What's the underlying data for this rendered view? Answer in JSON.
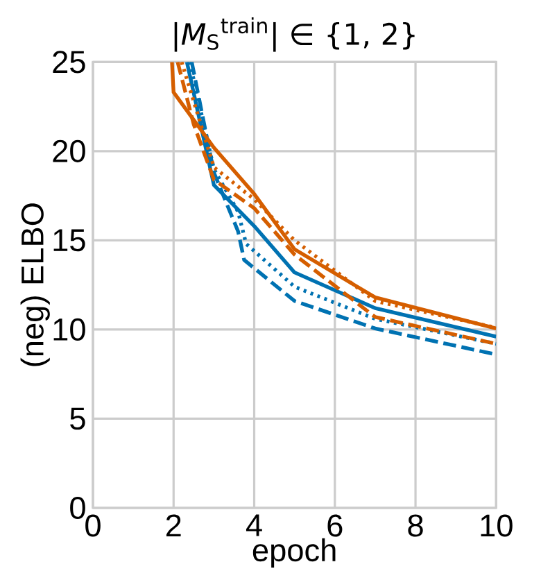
{
  "chart_data": {
    "type": "line",
    "title": "|*M*$_{S}$$^{train}$| ∈ {1, 2}",
    "xlabel": "epoch",
    "ylabel": "(neg) ELBO",
    "xlim": [
      0,
      10
    ],
    "ylim": [
      0,
      25
    ],
    "xticks": [
      0,
      2,
      4,
      6,
      8,
      10
    ],
    "yticks": [
      0,
      5,
      10,
      15,
      20,
      25
    ],
    "grid": true,
    "marker": "none",
    "series": [
      {
        "color": "#0072b2",
        "line_style": "solid",
        "x": [
          2.33,
          3,
          4,
          5,
          7,
          10
        ],
        "values": [
          25,
          18.1,
          15.8,
          13.2,
          11.2,
          9.6
        ]
      },
      {
        "color": "#0072b2",
        "line_style": "dotted",
        "x": [
          2.4,
          3,
          3.6,
          3.8,
          5,
          7,
          10
        ],
        "values": [
          25,
          19,
          16.6,
          14.8,
          12.4,
          10.6,
          9.2
        ]
      },
      {
        "color": "#0072b2",
        "line_style": "dashed",
        "x": [
          2.45,
          3,
          3.6,
          3.75,
          5,
          7,
          10
        ],
        "values": [
          25,
          18.8,
          15.5,
          13.9,
          11.6,
          10.06,
          8.6
        ]
      },
      {
        "color": "#d55e00",
        "line_style": "solid",
        "x": [
          1.96,
          2,
          3,
          4,
          5,
          7,
          10
        ],
        "values": [
          25,
          23.3,
          20.2,
          17.6,
          14.5,
          11.8,
          10.06
        ]
      },
      {
        "color": "#d55e00",
        "line_style": "dotted",
        "x": [
          2.2,
          3,
          4,
          5,
          7,
          10
        ],
        "values": [
          25,
          19.1,
          17.3,
          15.0,
          11.6,
          10.1
        ]
      },
      {
        "color": "#d55e00",
        "line_style": "dashed",
        "x": [
          2.1,
          2.5,
          3,
          4,
          5,
          7,
          10
        ],
        "values": [
          25,
          21.5,
          18.4,
          16.8,
          14.2,
          10.7,
          9.2
        ]
      }
    ]
  }
}
